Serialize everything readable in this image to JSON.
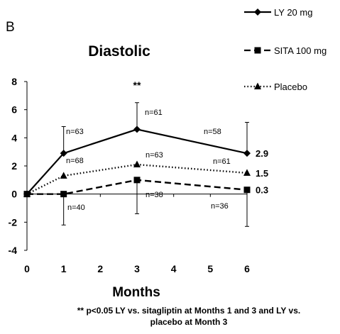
{
  "panel_letter": "B",
  "footnote": {
    "line1": "** p<0.05 LY vs. sitagliptin at Months 1 and 3 and LY vs.",
    "line2": "placebo at Month 3"
  },
  "chart_data": {
    "type": "line",
    "title": "Diastolic",
    "xlabel": "Months",
    "ylabel": "",
    "x_ticks": [
      0,
      1,
      2,
      3,
      4,
      5,
      6
    ],
    "y_ticks": [
      -4,
      -2,
      0,
      2,
      4,
      6,
      8
    ],
    "xlim": [
      0,
      6
    ],
    "ylim": [
      -4,
      8
    ],
    "grid": false,
    "legend_position": "top-right",
    "significance_marker": {
      "text": "**",
      "x": 3
    },
    "series": [
      {
        "name": "LY 20 mg",
        "style": "solid",
        "marker": "diamond",
        "color": "#000000",
        "x": [
          0,
          1,
          3,
          6
        ],
        "y": [
          0,
          2.9,
          4.6,
          2.9
        ],
        "err_upper": [
          null,
          4.8,
          6.5,
          5.1
        ],
        "err_lower": [
          null,
          null,
          null,
          null
        ],
        "n_labels": [
          null,
          "n=63",
          "n=61",
          "n=58"
        ],
        "end_label": "2.9"
      },
      {
        "name": "SITA 100 mg",
        "style": "dashed",
        "marker": "square",
        "color": "#000000",
        "x": [
          0,
          1,
          3,
          6
        ],
        "y": [
          0,
          0.0,
          1.0,
          0.3
        ],
        "err_upper": [
          null,
          null,
          null,
          null
        ],
        "err_lower": [
          null,
          -2.2,
          -1.4,
          -2.3
        ],
        "n_labels": [
          null,
          "n=40",
          "n=38",
          "n=36"
        ],
        "end_label": "0.3"
      },
      {
        "name": "Placebo",
        "style": "dotted",
        "marker": "triangle",
        "color": "#000000",
        "x": [
          0,
          1,
          3,
          6
        ],
        "y": [
          0,
          1.3,
          2.1,
          1.5
        ],
        "err_upper": [
          null,
          null,
          null,
          null
        ],
        "err_lower": [
          null,
          null,
          null,
          null
        ],
        "n_labels": [
          null,
          "n=68",
          "n=63",
          "n=61"
        ],
        "end_label": "1.5"
      }
    ]
  }
}
